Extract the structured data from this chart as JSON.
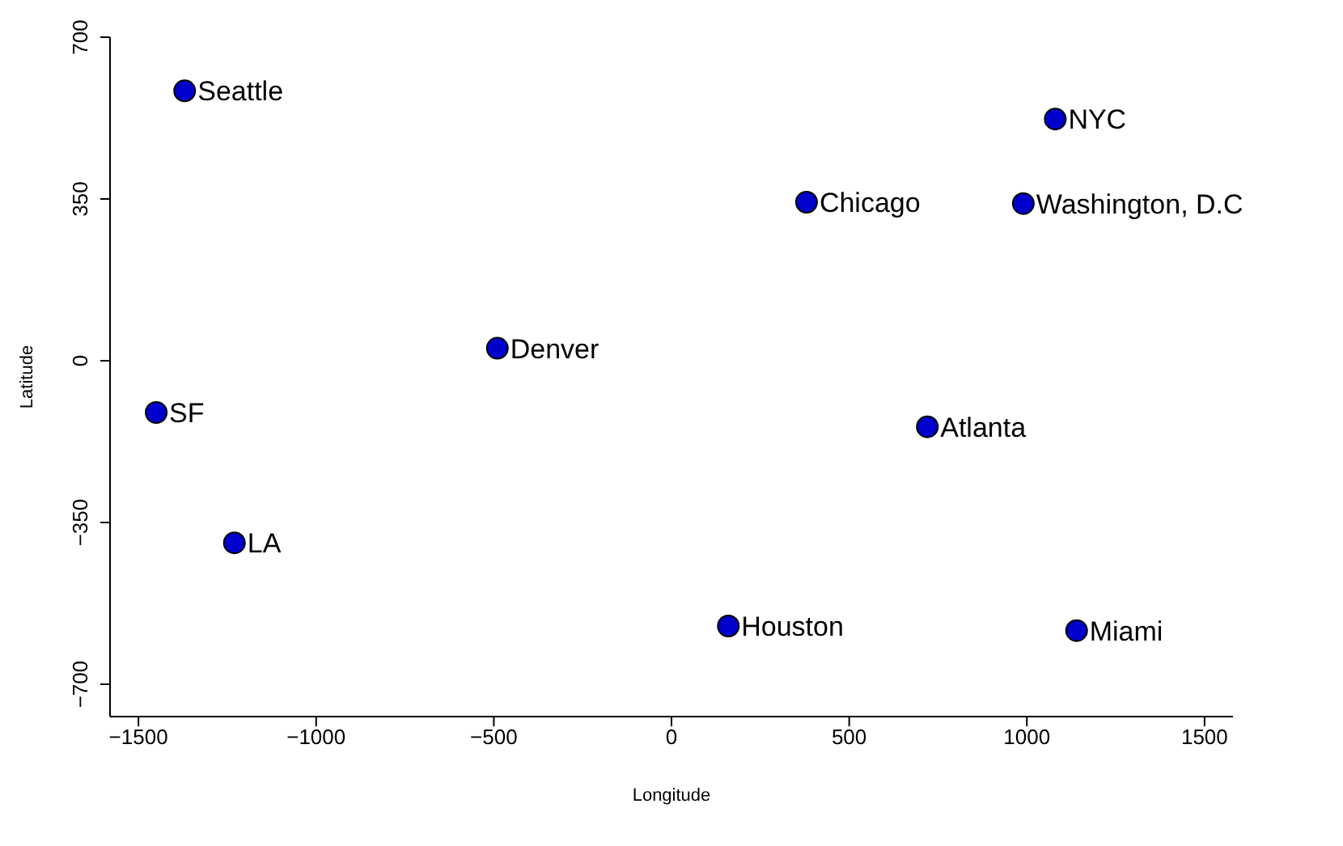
{
  "chart_data": {
    "type": "scatter",
    "xlabel": "Longitude",
    "ylabel": "Latitude",
    "x": [
      -1370,
      1080,
      380,
      990,
      -490,
      -1450,
      720,
      -1230,
      160,
      1140
    ],
    "values": [
      584,
      523,
      343,
      340,
      27,
      -112,
      -143,
      -394,
      -574,
      -584
    ],
    "color": "#0000cd",
    "marker": "circle",
    "grid": false,
    "xlim": [
      -1580,
      1580
    ],
    "ylim": [
      -770,
      700
    ],
    "xticks": [
      -1500,
      -1000,
      -500,
      0,
      500,
      1000,
      1500
    ],
    "yticks": [
      -700,
      -350,
      0,
      350,
      700
    ],
    "annotations": [
      {
        "text": "Seattle",
        "x": -1370,
        "y": 584
      },
      {
        "text": "NYC",
        "x": 1080,
        "y": 523
      },
      {
        "text": "Chicago",
        "x": 380,
        "y": 343
      },
      {
        "text": "Washington, D.C",
        "x": 990,
        "y": 340
      },
      {
        "text": "Denver",
        "x": -490,
        "y": 27
      },
      {
        "text": "SF",
        "x": -1450,
        "y": -112
      },
      {
        "text": "Atlanta",
        "x": 720,
        "y": -143
      },
      {
        "text": "LA",
        "x": -1230,
        "y": -394
      },
      {
        "text": "Houston",
        "x": 160,
        "y": -574
      },
      {
        "text": "Miami",
        "x": 1140,
        "y": -584
      }
    ]
  }
}
